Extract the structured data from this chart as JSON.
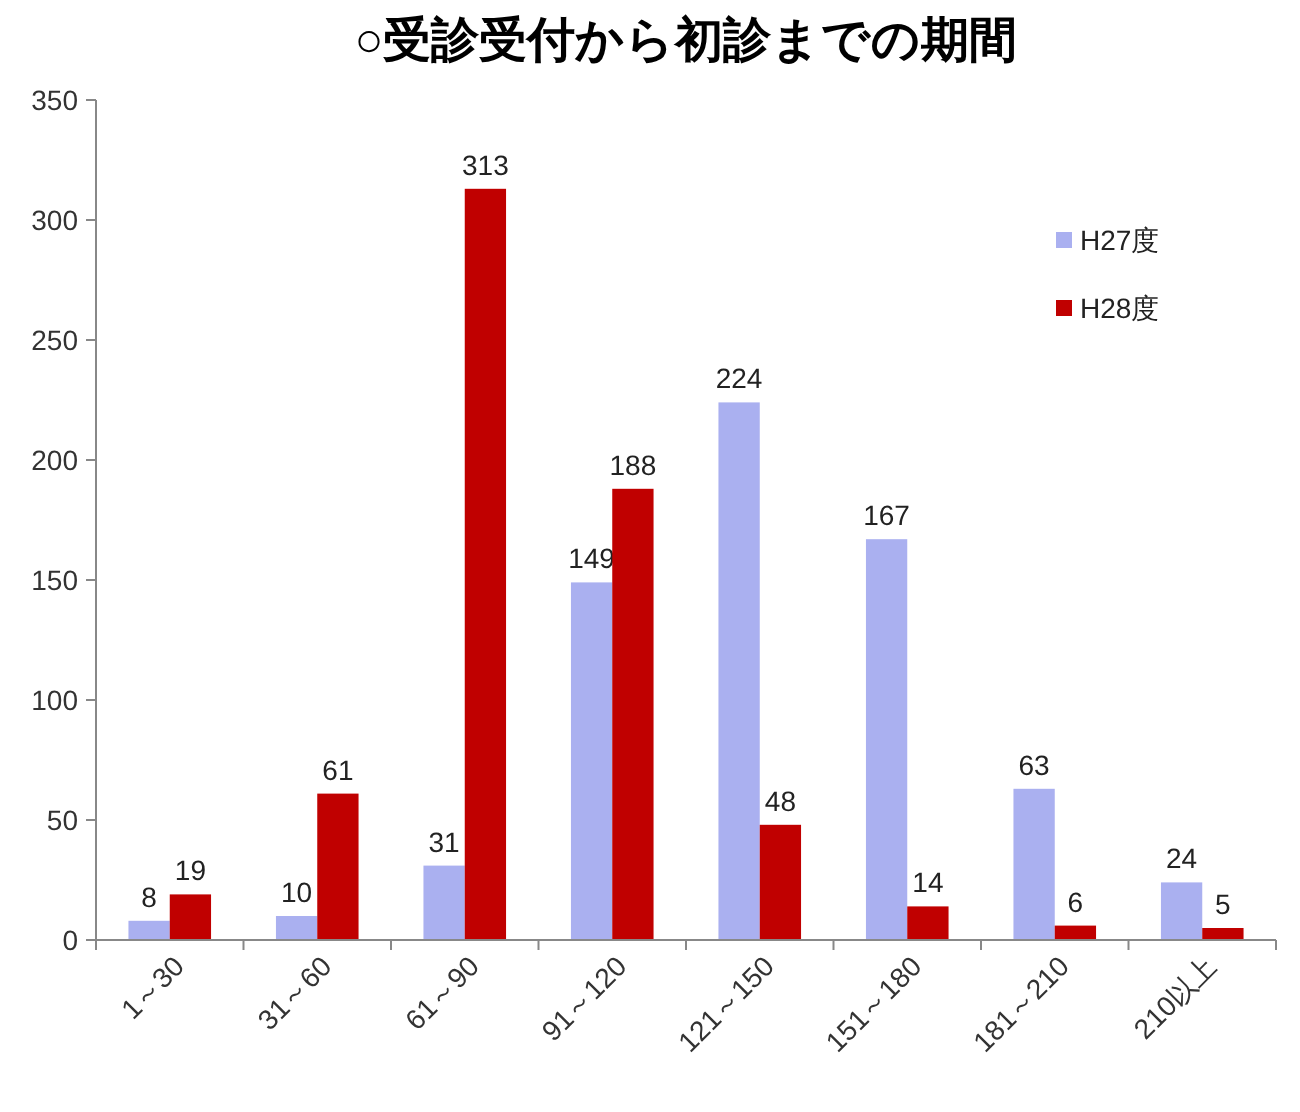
{
  "chart_data": {
    "type": "bar",
    "title": "○受診受付から初診までの期間",
    "categories": [
      "1～30",
      "31～60",
      "61～90",
      "91～120",
      "121～150",
      "151～180",
      "181～210",
      "210以上"
    ],
    "series": [
      {
        "name": "H27度",
        "color": "#aab0f0",
        "values": [
          8,
          10,
          31,
          149,
          224,
          167,
          63,
          24
        ]
      },
      {
        "name": "H28度",
        "color": "#c00000",
        "values": [
          19,
          61,
          313,
          188,
          48,
          14,
          6,
          5
        ]
      }
    ],
    "ylim": [
      0,
      350
    ],
    "yticks": [
      0,
      50,
      100,
      150,
      200,
      250,
      300,
      350
    ],
    "data_labels": true,
    "legend": "top right",
    "grid": false
  }
}
